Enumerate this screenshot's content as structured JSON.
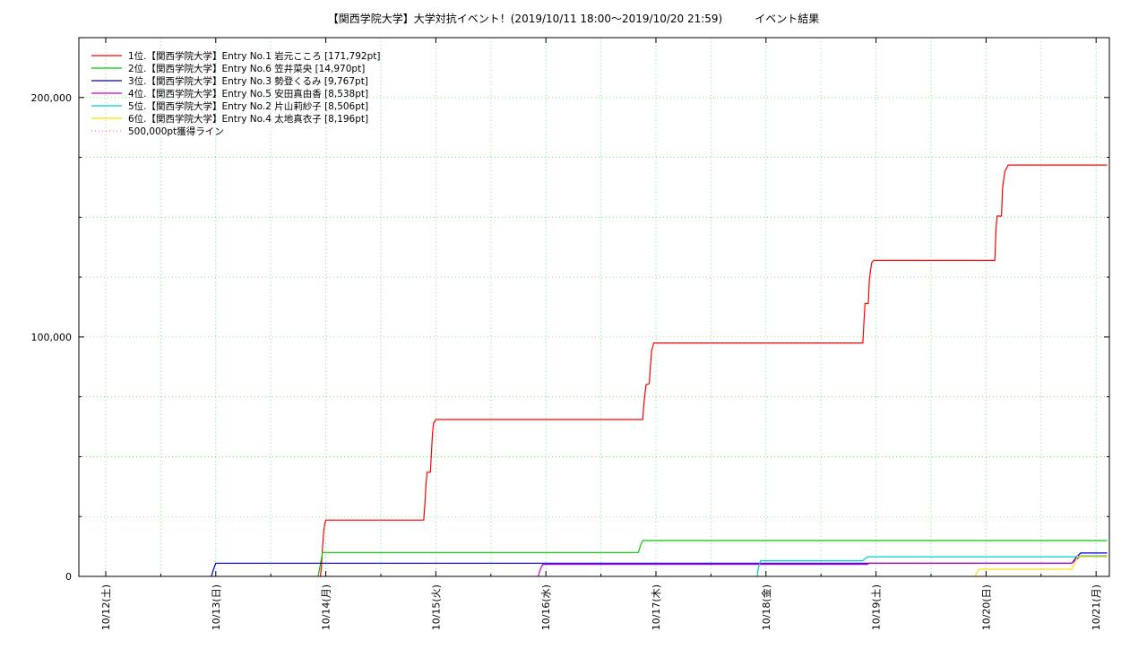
{
  "chart_data": {
    "type": "line",
    "title": "【関西学院大学】大学対抗イベント！(2019/10/11 18:00～2019/10/20 21:59)　　　イベント結果",
    "xlabel": "",
    "ylabel": "",
    "x_ticks": [
      "10/12(土)",
      "10/13(日)",
      "10/14(月)",
      "10/15(火)",
      "10/16(水)",
      "10/17(木)",
      "10/18(金)",
      "10/19(土)",
      "10/20(日)",
      "10/21(月)"
    ],
    "x_tick_days": [
      0,
      1,
      2,
      3,
      4,
      5,
      6,
      7,
      8,
      9
    ],
    "xlim": [
      0,
      9.1
    ],
    "ylim": [
      0,
      225000
    ],
    "y_ticks": [
      0,
      100000,
      200000
    ],
    "y_tick_labels": [
      "0",
      "100,000",
      "200,000"
    ],
    "grid": true,
    "grid_color": "#66dd66",
    "legend_position": "top-left",
    "series": [
      {
        "name": "1位.【関西学院大学】Entry No.1 岩元こころ [171,792pt]",
        "color": "#ff0000",
        "points": [
          [
            1.95,
            0
          ],
          [
            1.96,
            4000
          ],
          [
            1.97,
            12000
          ],
          [
            1.98,
            18000
          ],
          [
            1.99,
            22000
          ],
          [
            2.0,
            23500
          ],
          [
            2.89,
            23500
          ],
          [
            2.9,
            30000
          ],
          [
            2.91,
            38000
          ],
          [
            2.92,
            43500
          ],
          [
            2.95,
            43500
          ],
          [
            2.96,
            52000
          ],
          [
            2.97,
            60000
          ],
          [
            2.98,
            64000
          ],
          [
            3.0,
            65500
          ],
          [
            4.88,
            65500
          ],
          [
            4.89,
            72000
          ],
          [
            4.91,
            80000
          ],
          [
            4.94,
            80500
          ],
          [
            4.95,
            88000
          ],
          [
            4.96,
            94000
          ],
          [
            4.98,
            97500
          ],
          [
            6.88,
            97500
          ],
          [
            6.89,
            106000
          ],
          [
            6.9,
            114000
          ],
          [
            6.93,
            114000
          ],
          [
            6.94,
            124000
          ],
          [
            6.96,
            131000
          ],
          [
            6.98,
            132000
          ],
          [
            8.08,
            132000
          ],
          [
            8.09,
            145000
          ],
          [
            8.1,
            150500
          ],
          [
            8.14,
            150500
          ],
          [
            8.15,
            162000
          ],
          [
            8.17,
            169000
          ],
          [
            8.2,
            171792
          ],
          [
            9.1,
            171792
          ]
        ]
      },
      {
        "name": "2位.【関西学院大学】Entry No.6 笠井菜央 [14,970pt]",
        "color": "#00cc00",
        "points": [
          [
            1.93,
            0
          ],
          [
            1.95,
            5000
          ],
          [
            1.97,
            10000
          ],
          [
            4.84,
            10000
          ],
          [
            4.86,
            13000
          ],
          [
            4.88,
            14970
          ],
          [
            9.1,
            14970
          ]
        ]
      },
      {
        "name": "3位.【関西学院大学】Entry No.3 勢登くるみ [9,767pt]",
        "color": "#0000cc",
        "points": [
          [
            0.96,
            0
          ],
          [
            0.98,
            3000
          ],
          [
            1.0,
            5500
          ],
          [
            8.78,
            5500
          ],
          [
            8.82,
            8000
          ],
          [
            8.86,
            9767
          ],
          [
            9.1,
            9767
          ]
        ]
      },
      {
        "name": "4位.【関西学院大学】Entry No.5 安田真由香 [8,538pt]",
        "color": "#cc00cc",
        "points": [
          [
            3.93,
            0
          ],
          [
            3.95,
            3000
          ],
          [
            3.97,
            5000
          ],
          [
            6.92,
            5000
          ],
          [
            6.94,
            5500
          ],
          [
            8.78,
            5500
          ],
          [
            8.82,
            7000
          ],
          [
            8.86,
            8538
          ],
          [
            9.1,
            8538
          ]
        ]
      },
      {
        "name": "5位.【関西学院大学】Entry No.2 片山莉紗子 [8,506pt]",
        "color": "#00cccc",
        "points": [
          [
            5.92,
            0
          ],
          [
            5.93,
            3500
          ],
          [
            5.95,
            6500
          ],
          [
            6.88,
            6500
          ],
          [
            6.9,
            7500
          ],
          [
            6.93,
            8200
          ],
          [
            8.8,
            8200
          ],
          [
            8.84,
            8506
          ],
          [
            9.1,
            8506
          ]
        ]
      },
      {
        "name": "6位.【関西学院大学】Entry No.4 太地真衣子 [8,196pt]",
        "color": "#ffdd00",
        "points": [
          [
            7.9,
            0
          ],
          [
            7.92,
            2000
          ],
          [
            7.94,
            3000
          ],
          [
            8.78,
            3000
          ],
          [
            8.8,
            5000
          ],
          [
            8.83,
            8196
          ],
          [
            9.1,
            8196
          ]
        ]
      },
      {
        "name": "500,000pt獲得ライン",
        "color": "#ff6666",
        "dashed": true,
        "points": []
      }
    ]
  }
}
